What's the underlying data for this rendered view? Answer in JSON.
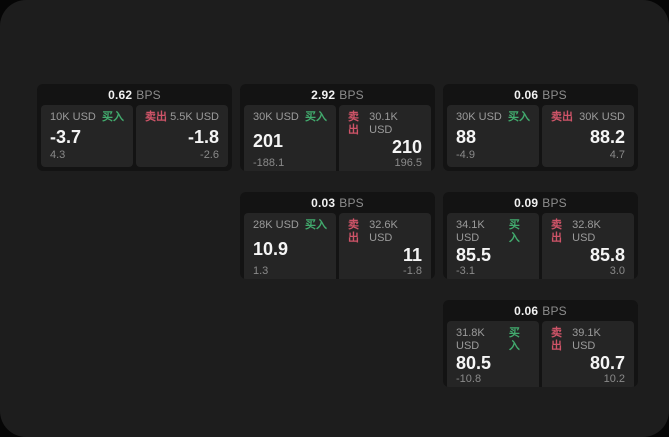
{
  "labels": {
    "buy": "买入",
    "sell": "卖出",
    "bps_unit": "BPS"
  },
  "colors": {
    "buy": "#42ab6e",
    "sell": "#cf5468",
    "panel_bg": "#1d1d1d",
    "card_bg": "#131313",
    "pane_bg": "#252525"
  },
  "cards": [
    {
      "row": 1,
      "col": 1,
      "bps": "0.62",
      "buy": {
        "size": "10K USD",
        "value": "-3.7",
        "delta": "4.3"
      },
      "sell": {
        "size": "5.5K USD",
        "value": "-1.8",
        "delta": "-2.6"
      }
    },
    {
      "row": 1,
      "col": 2,
      "bps": "2.92",
      "buy": {
        "size": "30K USD",
        "value": "201",
        "delta": "-188.1"
      },
      "sell": {
        "size": "30.1K USD",
        "value": "210",
        "delta": "196.5"
      }
    },
    {
      "row": 1,
      "col": 3,
      "bps": "0.06",
      "buy": {
        "size": "30K USD",
        "value": "88",
        "delta": "-4.9"
      },
      "sell": {
        "size": "30K USD",
        "value": "88.2",
        "delta": "4.7"
      }
    },
    {
      "row": 2,
      "col": 2,
      "bps": "0.03",
      "buy": {
        "size": "28K USD",
        "value": "10.9",
        "delta": "1.3"
      },
      "sell": {
        "size": "32.6K USD",
        "value": "11",
        "delta": "-1.8"
      }
    },
    {
      "row": 2,
      "col": 3,
      "bps": "0.09",
      "buy": {
        "size": "34.1K USD",
        "value": "85.5",
        "delta": "-3.1"
      },
      "sell": {
        "size": "32.8K USD",
        "value": "85.8",
        "delta": "3.0"
      }
    },
    {
      "row": 3,
      "col": 3,
      "bps": "0.06",
      "buy": {
        "size": "31.8K USD",
        "value": "80.5",
        "delta": "-10.8"
      },
      "sell": {
        "size": "39.1K USD",
        "value": "80.7",
        "delta": "10.2"
      }
    }
  ]
}
